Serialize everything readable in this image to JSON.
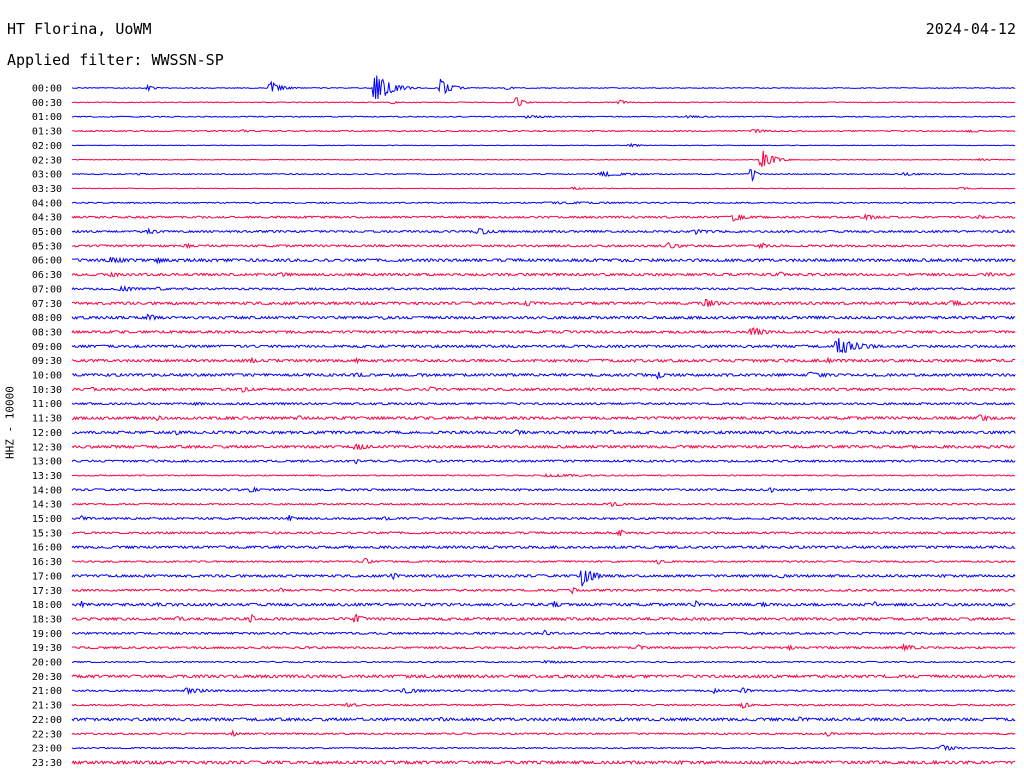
{
  "header": {
    "station": "HT Florina, UoWM",
    "date": "2024-04-12",
    "filter": "Applied filter: WWSSN-SP"
  },
  "chart_data": {
    "type": "line",
    "title": "HT Florina, UoWM",
    "subtitle": "Applied filter: WWSSN-SP",
    "date": "2024-04-12",
    "ylabel": "HHZ - 10000",
    "xlabel": "",
    "grid": false,
    "series_colors": [
      "#0000ff",
      "#ff0040"
    ],
    "rows": [
      {
        "label": "00:00",
        "color": "#0000ff",
        "noise": 0.4,
        "events": [
          {
            "x": 0.08,
            "amp": 3,
            "w": 0.01
          },
          {
            "x": 0.21,
            "amp": 8,
            "w": 0.015
          },
          {
            "x": 0.32,
            "amp": 18,
            "w": 0.02
          },
          {
            "x": 0.39,
            "amp": 10,
            "w": 0.015
          },
          {
            "x": 0.46,
            "amp": 2,
            "w": 0.01
          }
        ]
      },
      {
        "label": "00:30",
        "color": "#ff0040",
        "noise": 0.4,
        "events": [
          {
            "x": 0.34,
            "amp": 3,
            "w": 0.005
          },
          {
            "x": 0.47,
            "amp": 6,
            "w": 0.01
          },
          {
            "x": 0.58,
            "amp": 3,
            "w": 0.01
          }
        ]
      },
      {
        "label": "01:00",
        "color": "#0000ff",
        "noise": 0.5,
        "events": [
          {
            "x": 0.48,
            "amp": 1.5,
            "w": 0.05
          },
          {
            "x": 0.65,
            "amp": 1.2,
            "w": 0.05
          }
        ]
      },
      {
        "label": "01:30",
        "color": "#ff0040",
        "noise": 0.6,
        "events": [
          {
            "x": 0.18,
            "amp": 1.5,
            "w": 0.02
          },
          {
            "x": 0.72,
            "amp": 2,
            "w": 0.03
          },
          {
            "x": 0.95,
            "amp": 2,
            "w": 0.02
          }
        ]
      },
      {
        "label": "02:00",
        "color": "#0000ff",
        "noise": 0.3,
        "events": [
          {
            "x": 0.59,
            "amp": 2,
            "w": 0.015
          }
        ]
      },
      {
        "label": "02:30",
        "color": "#ff0040",
        "noise": 0.3,
        "events": [
          {
            "x": 0.73,
            "amp": 12,
            "w": 0.015
          },
          {
            "x": 0.96,
            "amp": 1.5,
            "w": 0.02
          }
        ]
      },
      {
        "label": "03:00",
        "color": "#0000ff",
        "noise": 0.5,
        "events": [
          {
            "x": 0.07,
            "amp": 2,
            "w": 0.01
          },
          {
            "x": 0.56,
            "amp": 2.5,
            "w": 0.05
          },
          {
            "x": 0.72,
            "amp": 10,
            "w": 0.005
          },
          {
            "x": 0.88,
            "amp": 1.5,
            "w": 0.04
          }
        ]
      },
      {
        "label": "03:30",
        "color": "#ff0040",
        "noise": 0.3,
        "events": [
          {
            "x": 0.53,
            "amp": 1.5,
            "w": 0.02
          },
          {
            "x": 0.94,
            "amp": 1.5,
            "w": 0.02
          }
        ]
      },
      {
        "label": "04:00",
        "color": "#0000ff",
        "noise": 0.6,
        "events": [
          {
            "x": 0.5,
            "amp": 1.2,
            "w": 0.2
          }
        ]
      },
      {
        "label": "04:30",
        "color": "#ff0040",
        "noise": 1.0,
        "events": [
          {
            "x": 0.7,
            "amp": 4,
            "w": 0.02
          },
          {
            "x": 0.84,
            "amp": 3,
            "w": 0.02
          },
          {
            "x": 0.96,
            "amp": 3,
            "w": 0.01
          }
        ]
      },
      {
        "label": "05:00",
        "color": "#0000ff",
        "noise": 1.0,
        "events": [
          {
            "x": 0.08,
            "amp": 3,
            "w": 0.02
          },
          {
            "x": 0.43,
            "amp": 4,
            "w": 0.02
          },
          {
            "x": 0.66,
            "amp": 3,
            "w": 0.02
          },
          {
            "x": 0.99,
            "amp": 2,
            "w": 0.01
          }
        ]
      },
      {
        "label": "05:30",
        "color": "#ff0040",
        "noise": 1.0,
        "events": [
          {
            "x": 0.12,
            "amp": 3,
            "w": 0.01
          },
          {
            "x": 0.63,
            "amp": 4,
            "w": 0.02
          },
          {
            "x": 0.73,
            "amp": 4,
            "w": 0.01
          }
        ]
      },
      {
        "label": "06:00",
        "color": "#0000ff",
        "noise": 1.4,
        "events": [
          {
            "x": 0.04,
            "amp": 4,
            "w": 0.03
          },
          {
            "x": 0.09,
            "amp": 3,
            "w": 0.02
          }
        ]
      },
      {
        "label": "06:30",
        "color": "#ff0040",
        "noise": 1.2,
        "events": [
          {
            "x": 0.04,
            "amp": 3,
            "w": 0.02
          },
          {
            "x": 0.22,
            "amp": 3,
            "w": 0.02
          },
          {
            "x": 0.75,
            "amp": 3,
            "w": 0.01
          },
          {
            "x": 0.97,
            "amp": 3,
            "w": 0.01
          }
        ]
      },
      {
        "label": "07:00",
        "color": "#0000ff",
        "noise": 1.0,
        "events": [
          {
            "x": 0.05,
            "amp": 3,
            "w": 0.03
          },
          {
            "x": 0.09,
            "amp": 2,
            "w": 0.02
          }
        ]
      },
      {
        "label": "07:30",
        "color": "#ff0040",
        "noise": 1.3,
        "events": [
          {
            "x": 0.48,
            "amp": 3,
            "w": 0.02
          },
          {
            "x": 0.67,
            "amp": 5,
            "w": 0.02
          },
          {
            "x": 0.93,
            "amp": 3,
            "w": 0.03
          }
        ]
      },
      {
        "label": "08:00",
        "color": "#0000ff",
        "noise": 1.3,
        "events": [
          {
            "x": 0.08,
            "amp": 4,
            "w": 0.02
          },
          {
            "x": 0.33,
            "amp": 3,
            "w": 0.005
          }
        ]
      },
      {
        "label": "08:30",
        "color": "#ff0040",
        "noise": 1.2,
        "events": [
          {
            "x": 0.72,
            "amp": 6,
            "w": 0.02
          },
          {
            "x": 0.52,
            "amp": 2,
            "w": 0.02
          }
        ]
      },
      {
        "label": "09:00",
        "color": "#0000ff",
        "noise": 1.2,
        "events": [
          {
            "x": 0.81,
            "amp": 10,
            "w": 0.03
          }
        ]
      },
      {
        "label": "09:30",
        "color": "#ff0040",
        "noise": 1.3,
        "events": [
          {
            "x": 0.19,
            "amp": 3,
            "w": 0.01
          },
          {
            "x": 0.3,
            "amp": 3,
            "w": 0.01
          },
          {
            "x": 0.8,
            "amp": 3,
            "w": 0.01
          }
        ]
      },
      {
        "label": "10:00",
        "color": "#0000ff",
        "noise": 1.3,
        "events": [
          {
            "x": 0.62,
            "amp": 4,
            "w": 0.01
          },
          {
            "x": 0.78,
            "amp": 3,
            "w": 0.04
          },
          {
            "x": 0.3,
            "amp": 3,
            "w": 0.02
          }
        ]
      },
      {
        "label": "10:30",
        "color": "#ff0040",
        "noise": 1.2,
        "events": [
          {
            "x": 0.02,
            "amp": 3,
            "w": 0.01
          },
          {
            "x": 0.18,
            "amp": 3,
            "w": 0.02
          },
          {
            "x": 0.38,
            "amp": 3,
            "w": 0.01
          }
        ]
      },
      {
        "label": "11:00",
        "color": "#0000ff",
        "noise": 1.0,
        "events": [
          {
            "x": 0.13,
            "amp": 2,
            "w": 0.02
          }
        ]
      },
      {
        "label": "11:30",
        "color": "#ff0040",
        "noise": 1.3,
        "events": [
          {
            "x": 0.09,
            "amp": 3,
            "w": 0.01
          },
          {
            "x": 0.24,
            "amp": 3,
            "w": 0.01
          },
          {
            "x": 0.96,
            "amp": 4,
            "w": 0.02
          }
        ]
      },
      {
        "label": "12:00",
        "color": "#0000ff",
        "noise": 1.3,
        "events": [
          {
            "x": 0.11,
            "amp": 3,
            "w": 0.01
          },
          {
            "x": 0.47,
            "amp": 3,
            "w": 0.02
          },
          {
            "x": 0.57,
            "amp": 3,
            "w": 0.01
          }
        ]
      },
      {
        "label": "12:30",
        "color": "#ff0040",
        "noise": 1.3,
        "events": [
          {
            "x": 0.3,
            "amp": 5,
            "w": 0.015
          },
          {
            "x": 0.97,
            "amp": 2,
            "w": 0.01
          }
        ]
      },
      {
        "label": "13:00",
        "color": "#0000ff",
        "noise": 1.0,
        "events": [
          {
            "x": 0.3,
            "amp": 4,
            "w": 0.005
          }
        ]
      },
      {
        "label": "13:30",
        "color": "#ff0040",
        "noise": 0.6,
        "events": [
          {
            "x": 0.5,
            "amp": 1.5,
            "w": 0.1
          }
        ]
      },
      {
        "label": "14:00",
        "color": "#0000ff",
        "noise": 1.0,
        "events": [
          {
            "x": 0.19,
            "amp": 4,
            "w": 0.01
          },
          {
            "x": 0.74,
            "amp": 4,
            "w": 0.005
          }
        ]
      },
      {
        "label": "14:30",
        "color": "#ff0040",
        "noise": 0.8,
        "events": [
          {
            "x": 0.57,
            "amp": 3,
            "w": 0.02
          }
        ]
      },
      {
        "label": "15:00",
        "color": "#0000ff",
        "noise": 1.0,
        "events": [
          {
            "x": 0.01,
            "amp": 3,
            "w": 0.01
          },
          {
            "x": 0.23,
            "amp": 5,
            "w": 0.005
          },
          {
            "x": 0.33,
            "amp": 2,
            "w": 0.02
          }
        ]
      },
      {
        "label": "15:30",
        "color": "#ff0040",
        "noise": 1.0,
        "events": [
          {
            "x": 0.58,
            "amp": 7,
            "w": 0.005
          }
        ]
      },
      {
        "label": "16:00",
        "color": "#0000ff",
        "noise": 1.2,
        "events": [
          {
            "x": 0.44,
            "amp": 2,
            "w": 0.02
          },
          {
            "x": 0.73,
            "amp": 2,
            "w": 0.01
          }
        ]
      },
      {
        "label": "16:30",
        "color": "#ff0040",
        "noise": 0.8,
        "events": [
          {
            "x": 0.31,
            "amp": 4,
            "w": 0.01
          },
          {
            "x": 0.62,
            "amp": 3,
            "w": 0.01
          }
        ]
      },
      {
        "label": "17:00",
        "color": "#0000ff",
        "noise": 1.2,
        "events": [
          {
            "x": 0.34,
            "amp": 4,
            "w": 0.01
          },
          {
            "x": 0.54,
            "amp": 13,
            "w": 0.015
          },
          {
            "x": 0.75,
            "amp": 3,
            "w": 0.01
          }
        ]
      },
      {
        "label": "17:30",
        "color": "#ff0040",
        "noise": 1.0,
        "events": [
          {
            "x": 0.22,
            "amp": 3,
            "w": 0.01
          },
          {
            "x": 0.53,
            "amp": 5,
            "w": 0.005
          }
        ]
      },
      {
        "label": "18:00",
        "color": "#0000ff",
        "noise": 1.3,
        "events": [
          {
            "x": 0.01,
            "amp": 4,
            "w": 0.005
          },
          {
            "x": 0.09,
            "amp": 3,
            "w": 0.01
          },
          {
            "x": 0.51,
            "amp": 4,
            "w": 0.01
          },
          {
            "x": 0.66,
            "amp": 5,
            "w": 0.005
          },
          {
            "x": 0.73,
            "amp": 3,
            "w": 0.01
          },
          {
            "x": 0.85,
            "amp": 4,
            "w": 0.005
          }
        ]
      },
      {
        "label": "18:30",
        "color": "#ff0040",
        "noise": 1.3,
        "events": [
          {
            "x": 0.11,
            "amp": 3,
            "w": 0.02
          },
          {
            "x": 0.19,
            "amp": 6,
            "w": 0.005
          },
          {
            "x": 0.3,
            "amp": 7,
            "w": 0.01
          }
        ]
      },
      {
        "label": "19:00",
        "color": "#0000ff",
        "noise": 1.0,
        "events": [
          {
            "x": 0.5,
            "amp": 4,
            "w": 0.01
          },
          {
            "x": 0.73,
            "amp": 2,
            "w": 0.005
          }
        ]
      },
      {
        "label": "19:30",
        "color": "#ff0040",
        "noise": 1.0,
        "events": [
          {
            "x": 0.6,
            "amp": 3,
            "w": 0.01
          },
          {
            "x": 0.76,
            "amp": 3,
            "w": 0.01
          },
          {
            "x": 0.88,
            "amp": 4,
            "w": 0.02
          }
        ]
      },
      {
        "label": "20:00",
        "color": "#0000ff",
        "noise": 0.6,
        "events": [
          {
            "x": 0.5,
            "amp": 1.5,
            "w": 0.05
          }
        ]
      },
      {
        "label": "20:30",
        "color": "#ff0040",
        "noise": 1.4,
        "events": [
          {
            "x": 0.14,
            "amp": 2,
            "w": 0.01
          }
        ]
      },
      {
        "label": "21:00",
        "color": "#0000ff",
        "noise": 0.8,
        "events": [
          {
            "x": 0.12,
            "amp": 3,
            "w": 0.04
          },
          {
            "x": 0.35,
            "amp": 3,
            "w": 0.04
          },
          {
            "x": 0.68,
            "amp": 3,
            "w": 0.01
          },
          {
            "x": 0.71,
            "amp": 4,
            "w": 0.01
          }
        ]
      },
      {
        "label": "21:30",
        "color": "#ff0040",
        "noise": 0.8,
        "events": [
          {
            "x": 0.29,
            "amp": 2,
            "w": 0.03
          },
          {
            "x": 0.71,
            "amp": 4,
            "w": 0.01
          }
        ]
      },
      {
        "label": "22:00",
        "color": "#0000ff",
        "noise": 1.4,
        "events": [
          {
            "x": 0.39,
            "amp": 3,
            "w": 0.01
          },
          {
            "x": 0.58,
            "amp": 3,
            "w": 0.01
          },
          {
            "x": 0.65,
            "amp": 2,
            "w": 0.01
          },
          {
            "x": 0.77,
            "amp": 3,
            "w": 0.01
          }
        ]
      },
      {
        "label": "22:30",
        "color": "#ff0040",
        "noise": 0.8,
        "events": [
          {
            "x": 0.17,
            "amp": 3,
            "w": 0.01
          },
          {
            "x": 0.8,
            "amp": 3,
            "w": 0.01
          }
        ]
      },
      {
        "label": "23:00",
        "color": "#0000ff",
        "noise": 0.6,
        "events": [
          {
            "x": 0.92,
            "amp": 4,
            "w": 0.02
          }
        ]
      },
      {
        "label": "23:30",
        "color": "#ff0040",
        "noise": 1.5,
        "events": [
          {
            "x": 0.58,
            "amp": 2,
            "w": 0.005
          }
        ]
      }
    ]
  }
}
